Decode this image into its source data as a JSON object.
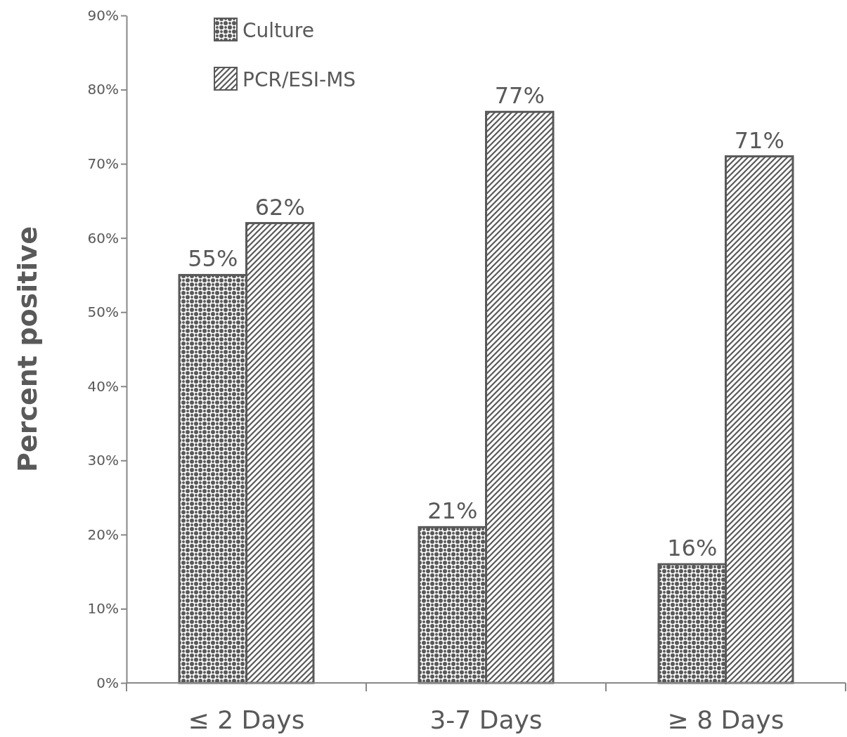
{
  "chart_data": {
    "type": "bar",
    "ylabel": "Percent positive",
    "categories": [
      "≤ 2 Days",
      "3-7 Days",
      "≥ 8 Days"
    ],
    "series": [
      {
        "name": "Culture",
        "color": "#595959",
        "values": [
          55,
          21,
          16
        ],
        "value_labels": [
          "55%",
          "21%",
          "16%"
        ]
      },
      {
        "name": "PCR/ESI-MS",
        "color": "#595959",
        "values": [
          62,
          77,
          71
        ],
        "value_labels": [
          "62%",
          "77%",
          "71%"
        ]
      }
    ],
    "ylim": [
      0,
      90
    ],
    "yticks": [
      {
        "value": 0,
        "label": "0%"
      },
      {
        "value": 10,
        "label": "10%"
      },
      {
        "value": 20,
        "label": "20%"
      },
      {
        "value": 30,
        "label": "30%"
      },
      {
        "value": 40,
        "label": "40%"
      },
      {
        "value": 50,
        "label": "50%"
      },
      {
        "value": 60,
        "label": "60%"
      },
      {
        "value": 70,
        "label": "70%"
      },
      {
        "value": 80,
        "label": "80%"
      },
      {
        "value": 90,
        "label": "90%"
      }
    ],
    "grid": false,
    "legend": "top left"
  }
}
